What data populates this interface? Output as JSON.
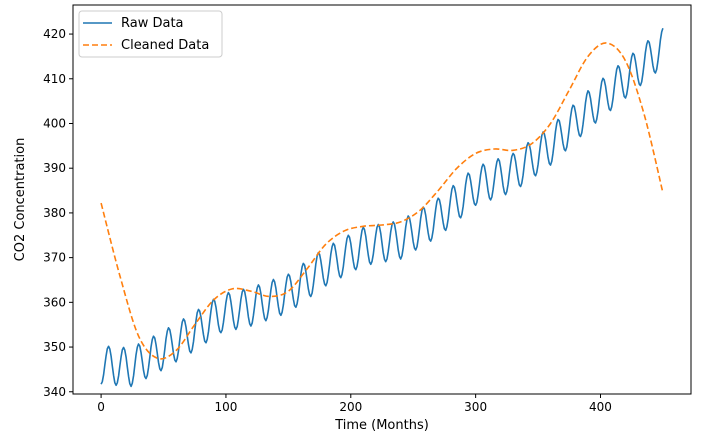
{
  "chart_data": {
    "type": "line",
    "title": "",
    "xlabel": "Time (Months)",
    "ylabel": "CO2 Concentration",
    "xlim": [
      -22.5,
      472.5
    ],
    "ylim": [
      339.5,
      426.5
    ],
    "xticks": [
      0,
      100,
      200,
      300,
      400
    ],
    "yticks": [
      340,
      350,
      360,
      370,
      380,
      390,
      400,
      410,
      420
    ],
    "grid": false,
    "legend": {
      "placement": "top-left"
    },
    "series": [
      {
        "name": "Raw Data",
        "color": "#1f77b4",
        "style": "solid",
        "raw_model": {
          "x_start": 0,
          "x_end": 450,
          "x_step": 1,
          "trend_points": [
            [
              0,
              346
            ],
            [
              24,
              345.5
            ],
            [
              48,
              349
            ],
            [
              72,
              353
            ],
            [
              96,
              357.5
            ],
            [
              120,
              359
            ],
            [
              150,
              362
            ],
            [
              180,
              368
            ],
            [
              210,
              372.5
            ],
            [
              240,
              374
            ],
            [
              270,
              379
            ],
            [
              300,
              386
            ],
            [
              330,
              389
            ],
            [
              360,
              395
            ],
            [
              390,
              403
            ],
            [
              420,
              410
            ],
            [
              450,
              417
            ]
          ],
          "seasonal_amplitude": 4.3,
          "seasonal_period_months": 12,
          "seasonal_phase_months": 3
        }
      },
      {
        "name": "Cleaned Data",
        "color": "#ff7f0e",
        "style": "dashed",
        "points": [
          [
            0,
            382.2
          ],
          [
            15,
            366
          ],
          [
            30,
            352.5
          ],
          [
            45,
            347.5
          ],
          [
            60,
            349.2
          ],
          [
            75,
            355
          ],
          [
            90,
            360.5
          ],
          [
            105,
            363
          ],
          [
            120,
            362.5
          ],
          [
            135,
            361.3
          ],
          [
            150,
            362.5
          ],
          [
            165,
            367.5
          ],
          [
            180,
            373
          ],
          [
            195,
            376
          ],
          [
            210,
            377
          ],
          [
            225,
            377.3
          ],
          [
            240,
            378
          ],
          [
            255,
            380.5
          ],
          [
            270,
            385
          ],
          [
            285,
            390
          ],
          [
            300,
            393.3
          ],
          [
            315,
            394.3
          ],
          [
            330,
            394
          ],
          [
            345,
            395.5
          ],
          [
            360,
            400
          ],
          [
            375,
            407.5
          ],
          [
            390,
            415
          ],
          [
            405,
            418
          ],
          [
            420,
            414
          ],
          [
            435,
            402
          ],
          [
            450,
            384.5
          ]
        ]
      }
    ]
  }
}
